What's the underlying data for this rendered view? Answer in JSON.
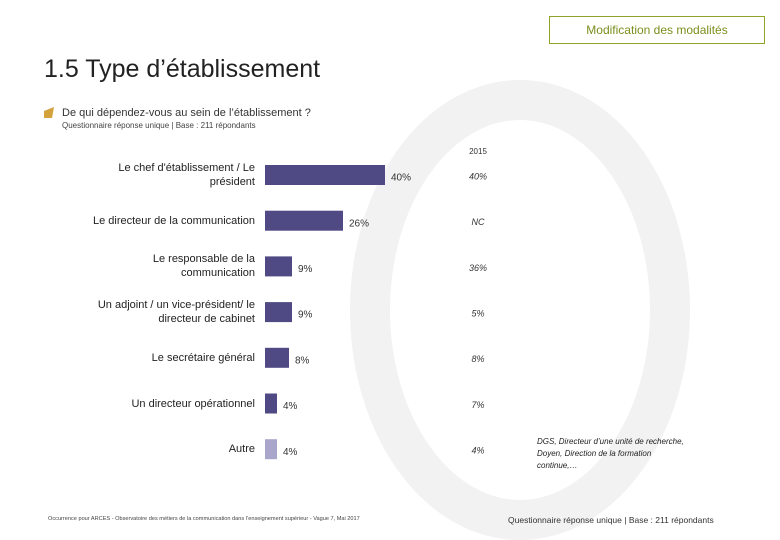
{
  "header": {
    "button": "Modification des modalités",
    "title": "1.5 Type d’établissement",
    "question": "De qui dépendez-vous au sein de l’établissement ?",
    "base": "Questionnaire réponse unique | Base : 211 répondants"
  },
  "chart_data": {
    "type": "bar",
    "orientation": "horizontal",
    "categories": [
      "Le chef d'établissement / Le président",
      "Le directeur de la communication",
      "Le responsable de la communication",
      "Un adjoint / un vice-président/ le directeur de cabinet",
      "Le secrétaire général",
      "Un directeur opérationnel",
      "Autre"
    ],
    "values": [
      40,
      26,
      9,
      9,
      8,
      4,
      4
    ],
    "value_labels": [
      "40%",
      "26%",
      "9%",
      "9%",
      "8%",
      "4%",
      "4%"
    ],
    "colors": [
      "#4f4a84",
      "#4f4a84",
      "#4f4a84",
      "#4f4a84",
      "#4f4a84",
      "#4f4a84",
      "#a9a6cc"
    ],
    "comparison_header": "2015",
    "comparison_labels": [
      "40%",
      "NC",
      "36%",
      "5%",
      "8%",
      "7%",
      "4%"
    ],
    "annotation": "DGS, Directeur d’une unité de recherche, Doyen, Direction de la formation continue,…"
  },
  "footer": {
    "source": "Occurrence pour ARCES - Observatoire des métiers de la communication dans l’enseignement supérieur - Vague 7, Mai 2017",
    "base": "Questionnaire réponse unique | Base : 211 répondants"
  }
}
